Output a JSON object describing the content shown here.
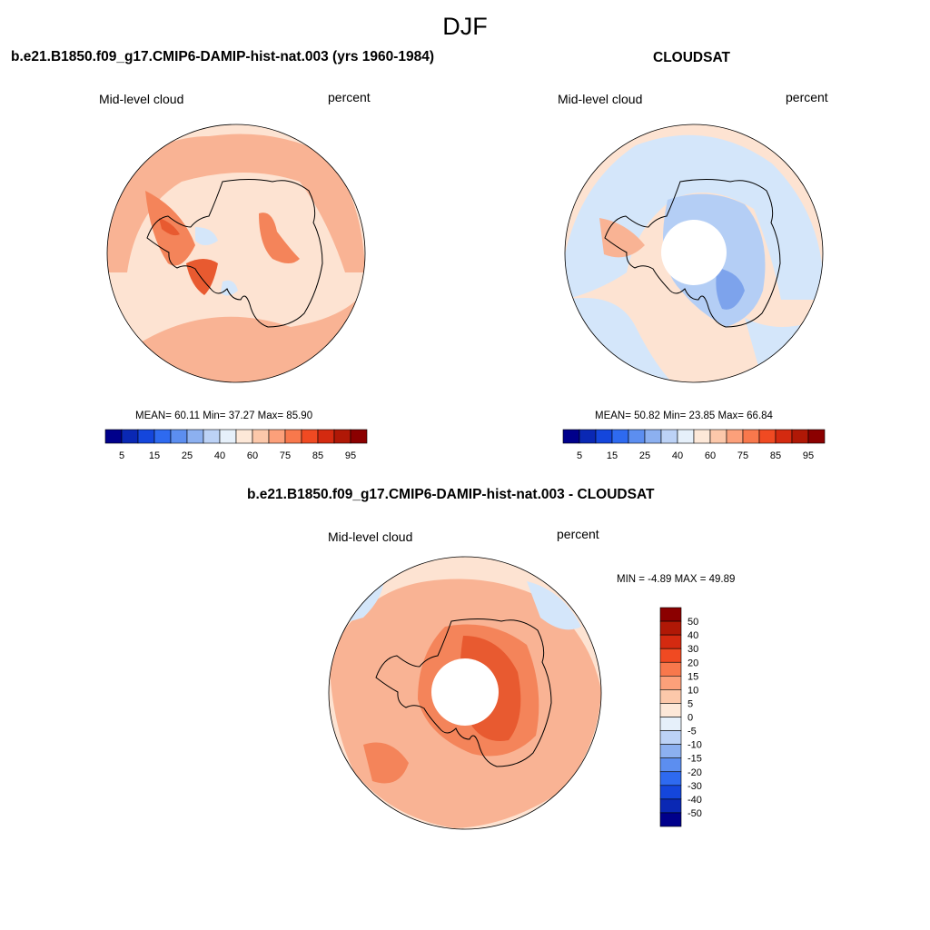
{
  "season": "DJF",
  "panels": [
    {
      "title": "b.e21.B1850.f09_g17.CMIP6-DAMIP-hist-nat.003 (yrs 1960-1984)",
      "variable": "Mid-level cloud",
      "units": "percent",
      "stats": {
        "mean": "60.11",
        "min": "37.27",
        "max": "85.90"
      },
      "stats_text": "MEAN=  60.11  Min=  37.27  Max=  85.90"
    },
    {
      "title": "CLOUDSAT",
      "variable": "Mid-level cloud",
      "units": "percent",
      "stats": {
        "mean": "50.82",
        "min": "23.85",
        "max": "66.84"
      },
      "stats_text": "MEAN=  50.82  Min=  23.85  Max=  66.84"
    },
    {
      "title": "b.e21.B1850.f09_g17.CMIP6-DAMIP-hist-nat.003 - CLOUDSAT",
      "variable": "Mid-level cloud",
      "units": "percent",
      "stats": {
        "min": "-4.89",
        "max": "49.89"
      },
      "stats_text": "MIN =  -4.89 MAX =  49.89"
    }
  ],
  "colorbar_fields": {
    "tick_labels": [
      "5",
      "15",
      "25",
      "40",
      "60",
      "75",
      "85",
      "95"
    ],
    "colors": [
      "#00008b",
      "#0a28b4",
      "#1446dc",
      "#2e6af0",
      "#5c8ef0",
      "#8cb0f0",
      "#bcd2f6",
      "#e6f0fa",
      "#fde8d8",
      "#fcc8aa",
      "#fca07a",
      "#f8784c",
      "#f04a22",
      "#d42a10",
      "#b01806",
      "#8b0000"
    ]
  },
  "colorbar_diff": {
    "tick_labels": [
      "50",
      "40",
      "30",
      "20",
      "15",
      "10",
      "5",
      "0",
      "-5",
      "-10",
      "-15",
      "-20",
      "-30",
      "-40",
      "-50"
    ],
    "colors": [
      "#8b0000",
      "#b01806",
      "#d42a10",
      "#f04a22",
      "#f8784c",
      "#fca07a",
      "#fcc8aa",
      "#fde8d8",
      "#e6f0fa",
      "#bcd2f6",
      "#8cb0f0",
      "#5c8ef0",
      "#2e6af0",
      "#1446dc",
      "#0a28b4",
      "#00008b"
    ]
  },
  "map_colors": {
    "light_red": "#fde3d2",
    "mid_red": "#f9b394",
    "red": "#f4845a",
    "dark_red": "#e85a30",
    "light_blue": "#d4e6fa",
    "mid_blue": "#b4cef5",
    "blue": "#7da3ec",
    "dark_blue": "#4a78e0"
  }
}
